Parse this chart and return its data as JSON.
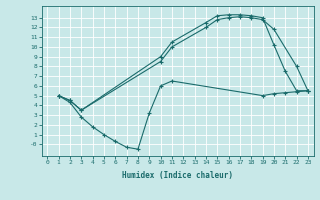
{
  "xlabel": "Humidex (Indice chaleur)",
  "bg_color": "#c8e8e8",
  "grid_color": "#ffffff",
  "line_color": "#1a6b6b",
  "xlim": [
    -0.5,
    23.5
  ],
  "ylim": [
    -1.2,
    14.2
  ],
  "xticks": [
    0,
    1,
    2,
    3,
    4,
    5,
    6,
    7,
    8,
    9,
    10,
    11,
    12,
    13,
    14,
    15,
    16,
    17,
    18,
    19,
    20,
    21,
    22,
    23
  ],
  "yticks": [
    0,
    1,
    2,
    3,
    4,
    5,
    6,
    7,
    8,
    9,
    10,
    11,
    12,
    13
  ],
  "curve1_x": [
    1,
    2,
    3,
    10,
    11,
    14,
    15,
    16,
    17,
    18,
    19,
    20,
    21,
    22,
    23
  ],
  "curve1_y": [
    5.0,
    4.5,
    3.5,
    9.0,
    10.5,
    12.5,
    13.2,
    13.3,
    13.3,
    13.2,
    13.0,
    10.2,
    7.5,
    5.5,
    5.5
  ],
  "curve2_x": [
    1,
    2,
    3,
    10,
    11,
    14,
    15,
    16,
    17,
    18,
    19,
    20,
    22,
    23
  ],
  "curve2_y": [
    5.0,
    4.5,
    3.5,
    8.5,
    10.0,
    12.0,
    12.8,
    13.0,
    13.1,
    13.0,
    12.8,
    11.8,
    8.0,
    5.5
  ],
  "curve3_x": [
    1,
    2,
    3,
    4,
    5,
    6,
    7,
    8,
    9,
    10,
    11,
    19,
    20,
    21,
    22,
    23
  ],
  "curve3_y": [
    5.0,
    4.3,
    2.8,
    1.8,
    1.0,
    0.3,
    -0.3,
    -0.5,
    3.2,
    6.0,
    6.5,
    5.0,
    5.2,
    5.3,
    5.4,
    5.5
  ]
}
